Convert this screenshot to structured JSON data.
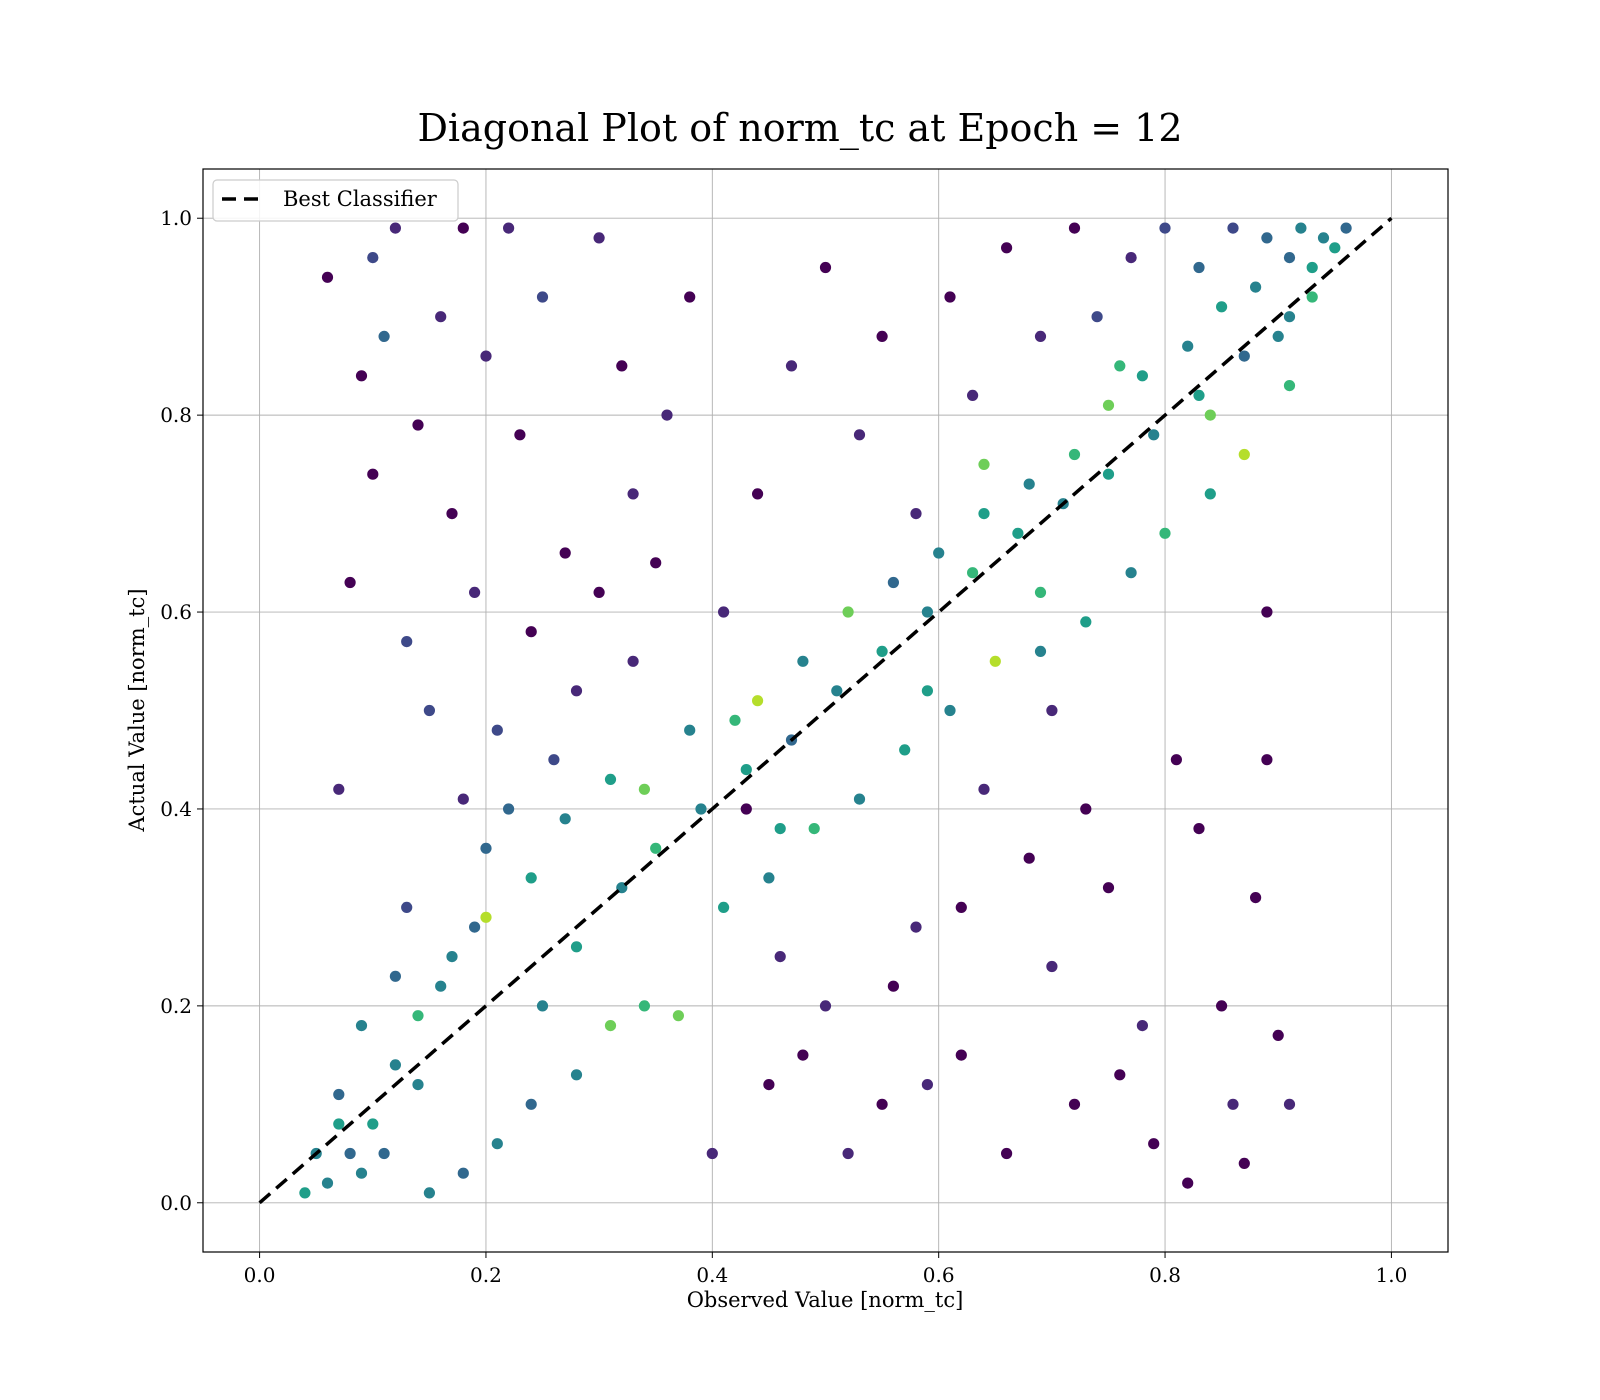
{
  "chart_data": {
    "type": "scatter",
    "title": "Diagonal Plot of norm_tc at Epoch = 12",
    "xlabel": "Observed Value [norm_tc]",
    "ylabel": "Actual Value [norm_tc]",
    "xlim": [
      -0.05,
      1.05
    ],
    "ylim": [
      -0.05,
      1.05
    ],
    "x_ticks": [
      0.0,
      0.2,
      0.4,
      0.6,
      0.8,
      1.0
    ],
    "y_ticks": [
      0.0,
      0.2,
      0.4,
      0.6,
      0.8,
      1.0
    ],
    "x_tick_labels": [
      "0.0",
      "0.2",
      "0.4",
      "0.6",
      "0.8",
      "1.0"
    ],
    "y_tick_labels": [
      "0.0",
      "0.2",
      "0.4",
      "0.6",
      "0.8",
      "1.0"
    ],
    "grid": true,
    "legend": {
      "position": "top-left",
      "entries": [
        "Best Classifier"
      ]
    },
    "colormap": [
      "#440154",
      "#482878",
      "#3e4989",
      "#31688e",
      "#26828e",
      "#1f9e89",
      "#35b779",
      "#6ece58",
      "#b5de2b"
    ],
    "series": [
      {
        "name": "Best Classifier",
        "type": "line",
        "style": "dashed",
        "color": "#000000",
        "points": [
          [
            0.0,
            0.0
          ],
          [
            1.0,
            1.0
          ]
        ]
      },
      {
        "type": "scatter",
        "points": [
          [
            0.06,
            0.94,
            0
          ],
          [
            0.08,
            0.63,
            0
          ],
          [
            0.07,
            0.42,
            1
          ],
          [
            0.09,
            0.84,
            0
          ],
          [
            0.1,
            0.74,
            0
          ],
          [
            0.1,
            0.96,
            2
          ],
          [
            0.11,
            0.88,
            3
          ],
          [
            0.12,
            0.99,
            1
          ],
          [
            0.13,
            0.57,
            2
          ],
          [
            0.14,
            0.79,
            0
          ],
          [
            0.16,
            0.9,
            1
          ],
          [
            0.17,
            0.7,
            0
          ],
          [
            0.18,
            0.99,
            0
          ],
          [
            0.19,
            0.62,
            1
          ],
          [
            0.2,
            0.86,
            1
          ],
          [
            0.21,
            0.48,
            2
          ],
          [
            0.22,
            0.99,
            1
          ],
          [
            0.23,
            0.78,
            0
          ],
          [
            0.25,
            0.92,
            2
          ],
          [
            0.27,
            0.66,
            0
          ],
          [
            0.3,
            0.98,
            1
          ],
          [
            0.32,
            0.85,
            0
          ],
          [
            0.33,
            0.72,
            1
          ],
          [
            0.15,
            0.5,
            2
          ],
          [
            0.18,
            0.41,
            1
          ],
          [
            0.2,
            0.36,
            3
          ],
          [
            0.13,
            0.3,
            2
          ],
          [
            0.12,
            0.23,
            3
          ],
          [
            0.09,
            0.18,
            4
          ],
          [
            0.07,
            0.11,
            3
          ],
          [
            0.05,
            0.05,
            4
          ],
          [
            0.04,
            0.01,
            5
          ],
          [
            0.06,
            0.02,
            4
          ],
          [
            0.08,
            0.05,
            3
          ],
          [
            0.1,
            0.08,
            5
          ],
          [
            0.12,
            0.14,
            4
          ],
          [
            0.14,
            0.19,
            6
          ],
          [
            0.17,
            0.25,
            4
          ],
          [
            0.2,
            0.29,
            8
          ],
          [
            0.24,
            0.33,
            5
          ],
          [
            0.27,
            0.39,
            4
          ],
          [
            0.31,
            0.43,
            5
          ],
          [
            0.34,
            0.42,
            7
          ],
          [
            0.38,
            0.48,
            4
          ],
          [
            0.42,
            0.49,
            6
          ],
          [
            0.44,
            0.51,
            8
          ],
          [
            0.48,
            0.55,
            4
          ],
          [
            0.52,
            0.6,
            7
          ],
          [
            0.56,
            0.63,
            3
          ],
          [
            0.6,
            0.66,
            4
          ],
          [
            0.64,
            0.7,
            5
          ],
          [
            0.68,
            0.73,
            4
          ],
          [
            0.72,
            0.76,
            6
          ],
          [
            0.75,
            0.81,
            7
          ],
          [
            0.78,
            0.84,
            5
          ],
          [
            0.82,
            0.87,
            4
          ],
          [
            0.85,
            0.91,
            5
          ],
          [
            0.88,
            0.93,
            4
          ],
          [
            0.91,
            0.96,
            3
          ],
          [
            0.94,
            0.98,
            4
          ],
          [
            0.95,
            0.97,
            5
          ],
          [
            0.93,
            0.92,
            6
          ],
          [
            0.9,
            0.88,
            4
          ],
          [
            0.87,
            0.76,
            8
          ],
          [
            0.84,
            0.72,
            5
          ],
          [
            0.8,
            0.68,
            6
          ],
          [
            0.77,
            0.64,
            4
          ],
          [
            0.73,
            0.59,
            5
          ],
          [
            0.69,
            0.56,
            4
          ],
          [
            0.65,
            0.55,
            8
          ],
          [
            0.61,
            0.5,
            4
          ],
          [
            0.57,
            0.46,
            5
          ],
          [
            0.53,
            0.41,
            4
          ],
          [
            0.49,
            0.38,
            6
          ],
          [
            0.45,
            0.33,
            4
          ],
          [
            0.41,
            0.3,
            5
          ],
          [
            0.37,
            0.19,
            7
          ],
          [
            0.34,
            0.2,
            6
          ],
          [
            0.31,
            0.18,
            7
          ],
          [
            0.28,
            0.13,
            4
          ],
          [
            0.24,
            0.1,
            3
          ],
          [
            0.21,
            0.06,
            4
          ],
          [
            0.18,
            0.03,
            3
          ],
          [
            0.15,
            0.01,
            4
          ],
          [
            0.4,
            0.05,
            1
          ],
          [
            0.45,
            0.12,
            0
          ],
          [
            0.5,
            0.2,
            1
          ],
          [
            0.55,
            0.1,
            0
          ],
          [
            0.58,
            0.28,
            1
          ],
          [
            0.62,
            0.15,
            0
          ],
          [
            0.66,
            0.05,
            0
          ],
          [
            0.7,
            0.24,
            1
          ],
          [
            0.72,
            0.1,
            0
          ],
          [
            0.75,
            0.32,
            0
          ],
          [
            0.78,
            0.18,
            1
          ],
          [
            0.81,
            0.45,
            0
          ],
          [
            0.83,
            0.38,
            0
          ],
          [
            0.85,
            0.2,
            0
          ],
          [
            0.86,
            0.1,
            1
          ],
          [
            0.88,
            0.31,
            0
          ],
          [
            0.89,
            0.6,
            0
          ],
          [
            0.89,
            0.45,
            0
          ],
          [
            0.9,
            0.17,
            0
          ],
          [
            0.91,
            0.1,
            1
          ],
          [
            0.87,
            0.04,
            0
          ],
          [
            0.82,
            0.02,
            0
          ],
          [
            0.79,
            0.06,
            0
          ],
          [
            0.76,
            0.13,
            0
          ],
          [
            0.73,
            0.4,
            0
          ],
          [
            0.7,
            0.5,
            1
          ],
          [
            0.68,
            0.35,
            0
          ],
          [
            0.64,
            0.42,
            1
          ],
          [
            0.62,
            0.3,
            0
          ],
          [
            0.59,
            0.12,
            1
          ],
          [
            0.56,
            0.22,
            0
          ],
          [
            0.52,
            0.05,
            1
          ],
          [
            0.48,
            0.15,
            0
          ],
          [
            0.46,
            0.25,
            1
          ],
          [
            0.43,
            0.4,
            0
          ],
          [
            0.41,
            0.6,
            1
          ],
          [
            0.44,
            0.72,
            0
          ],
          [
            0.47,
            0.85,
            1
          ],
          [
            0.5,
            0.95,
            0
          ],
          [
            0.53,
            0.78,
            1
          ],
          [
            0.55,
            0.88,
            0
          ],
          [
            0.58,
            0.7,
            1
          ],
          [
            0.61,
            0.92,
            0
          ],
          [
            0.63,
            0.82,
            1
          ],
          [
            0.66,
            0.97,
            0
          ],
          [
            0.69,
            0.88,
            1
          ],
          [
            0.72,
            0.99,
            0
          ],
          [
            0.74,
            0.9,
            2
          ],
          [
            0.77,
            0.96,
            1
          ],
          [
            0.8,
            0.99,
            2
          ],
          [
            0.83,
            0.95,
            3
          ],
          [
            0.86,
            0.99,
            2
          ],
          [
            0.89,
            0.98,
            3
          ],
          [
            0.92,
            0.99,
            4
          ],
          [
            0.38,
            0.92,
            0
          ],
          [
            0.36,
            0.8,
            1
          ],
          [
            0.35,
            0.65,
            0
          ],
          [
            0.33,
            0.55,
            1
          ],
          [
            0.3,
            0.62,
            0
          ],
          [
            0.28,
            0.52,
            1
          ],
          [
            0.26,
            0.45,
            2
          ],
          [
            0.24,
            0.58,
            0
          ],
          [
            0.22,
            0.4,
            3
          ],
          [
            0.19,
            0.28,
            3
          ],
          [
            0.16,
            0.22,
            4
          ],
          [
            0.14,
            0.12,
            4
          ],
          [
            0.11,
            0.05,
            3
          ],
          [
            0.09,
            0.03,
            4
          ],
          [
            0.07,
            0.08,
            5
          ],
          [
            0.25,
            0.2,
            4
          ],
          [
            0.28,
            0.26,
            5
          ],
          [
            0.32,
            0.32,
            4
          ],
          [
            0.35,
            0.36,
            6
          ],
          [
            0.39,
            0.4,
            4
          ],
          [
            0.43,
            0.44,
            5
          ],
          [
            0.47,
            0.47,
            3
          ],
          [
            0.51,
            0.52,
            4
          ],
          [
            0.55,
            0.56,
            5
          ],
          [
            0.59,
            0.6,
            4
          ],
          [
            0.63,
            0.64,
            6
          ],
          [
            0.67,
            0.68,
            5
          ],
          [
            0.71,
            0.71,
            4
          ],
          [
            0.75,
            0.74,
            5
          ],
          [
            0.79,
            0.78,
            4
          ],
          [
            0.83,
            0.82,
            5
          ],
          [
            0.87,
            0.86,
            3
          ],
          [
            0.91,
            0.9,
            4
          ],
          [
            0.93,
            0.95,
            5
          ],
          [
            0.96,
            0.99,
            3
          ],
          [
            0.64,
            0.75,
            7
          ],
          [
            0.76,
            0.85,
            6
          ],
          [
            0.84,
            0.8,
            7
          ],
          [
            0.91,
            0.83,
            6
          ],
          [
            0.69,
            0.62,
            6
          ],
          [
            0.59,
            0.52,
            5
          ],
          [
            0.46,
            0.38,
            5
          ]
        ]
      }
    ]
  }
}
